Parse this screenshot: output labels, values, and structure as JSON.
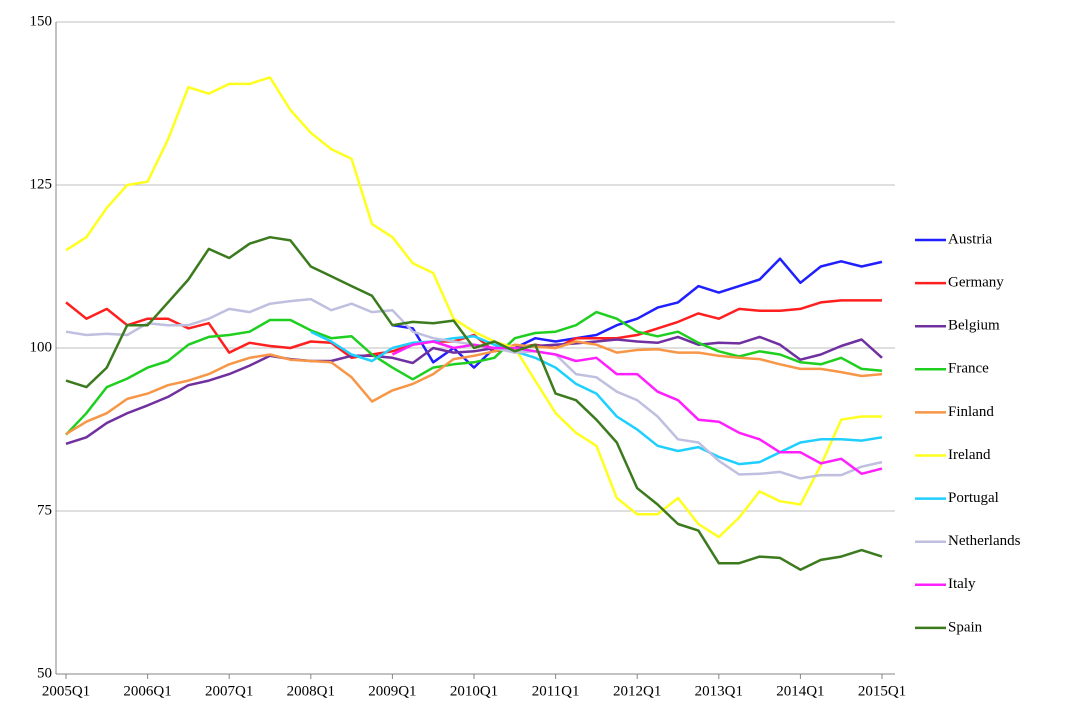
{
  "chart_data": {
    "type": "line",
    "categories": [
      "2005Q1",
      null,
      null,
      null,
      "2006Q1",
      null,
      null,
      null,
      "2007Q1",
      null,
      null,
      null,
      "2008Q1",
      null,
      null,
      null,
      "2009Q1",
      null,
      null,
      null,
      "2010Q1",
      null,
      null,
      null,
      "2011Q1",
      null,
      null,
      null,
      "2012Q1",
      null,
      null,
      null,
      "2013Q1",
      null,
      null,
      null,
      "2014Q1",
      null,
      null,
      null,
      "2015Q1"
    ],
    "ylim": [
      50,
      150
    ],
    "yticks": [
      50,
      75,
      100,
      125,
      150
    ],
    "grid": true,
    "series": [
      {
        "name": "Austria",
        "color": "#1f1fff",
        "values": [
          null,
          null,
          null,
          null,
          null,
          null,
          null,
          null,
          null,
          null,
          null,
          null,
          null,
          null,
          null,
          null,
          103.5,
          103,
          97.8,
          100,
          97,
          100,
          100,
          101.5,
          101,
          101.5,
          102,
          103.5,
          104.5,
          106.2,
          107,
          109.5,
          108.5,
          109.5,
          110.5,
          113.7,
          110,
          112.5,
          113.3,
          112.5,
          113.2
        ]
      },
      {
        "name": "Germany",
        "color": "#ff1f1f",
        "values": [
          107,
          104.5,
          106,
          103.5,
          104.5,
          104.5,
          103,
          103.8,
          99.3,
          100.8,
          100.3,
          100,
          101,
          100.8,
          98.5,
          99,
          99.5,
          100.5,
          101,
          101,
          102,
          99.5,
          100,
          100.5,
          100,
          101.5,
          101.5,
          101.5,
          102,
          103,
          104,
          105.3,
          104.5,
          106,
          105.7,
          105.7,
          106,
          107,
          107.3,
          107.3,
          107.3
        ]
      },
      {
        "name": "Belgium",
        "color": "#7030a0",
        "values": [
          85.3,
          86.3,
          88.5,
          90,
          91.2,
          92.5,
          94.3,
          95,
          96,
          97.3,
          98.8,
          98.3,
          98,
          98,
          98.8,
          98.8,
          98.5,
          97.7,
          100,
          99.3,
          99.5,
          100,
          100,
          100.3,
          100.5,
          100.7,
          101,
          101.3,
          101,
          100.8,
          101.7,
          100.5,
          100.8,
          100.7,
          101.7,
          100.5,
          98.2,
          99,
          100.3,
          101.3,
          98.5
        ]
      },
      {
        "name": "France",
        "color": "#1fcf1f",
        "values": [
          86.7,
          90,
          94,
          95.3,
          97,
          98,
          100.5,
          101.7,
          102,
          102.5,
          104.3,
          104.3,
          102.7,
          101.5,
          101.8,
          99,
          97,
          95.2,
          97,
          97.5,
          97.8,
          98.5,
          101.5,
          102.3,
          102.5,
          103.5,
          105.5,
          104.5,
          102.5,
          101.8,
          102.5,
          100.8,
          99.5,
          98.7,
          99.5,
          99,
          97.8,
          97.5,
          98.5,
          96.8,
          96.5
        ]
      },
      {
        "name": "Finland",
        "color": "#f79646",
        "values": [
          86.8,
          88.7,
          90,
          92.2,
          93,
          94.3,
          95,
          96,
          97.5,
          98.5,
          99,
          98.2,
          98,
          97.8,
          95.5,
          91.8,
          93.5,
          94.5,
          96,
          98.3,
          98.8,
          99.5,
          100.5,
          100.2,
          100,
          101,
          100.5,
          99.3,
          99.7,
          99.8,
          99.3,
          99.3,
          98.8,
          98.5,
          98.3,
          97.5,
          96.8,
          96.8,
          96.3,
          95.7,
          96
        ]
      },
      {
        "name": "Ireland",
        "color": "#ffff1f",
        "values": [
          115,
          117,
          121.5,
          125,
          125.5,
          132,
          140,
          139,
          140.5,
          140.5,
          141.5,
          136.5,
          133,
          130.5,
          129,
          119,
          117,
          113,
          111.5,
          104.5,
          102.5,
          101,
          100,
          95,
          90,
          87,
          85,
          77,
          74.5,
          74.5,
          77,
          73,
          71,
          74,
          78,
          76.5,
          76,
          82,
          89,
          89.5,
          89.5
        ]
      },
      {
        "name": "Portugal",
        "color": "#1fcfff",
        "values": [
          null,
          null,
          null,
          null,
          null,
          null,
          null,
          null,
          null,
          null,
          null,
          null,
          102.5,
          101,
          99,
          98,
          100,
          100.8,
          101,
          101.5,
          101.8,
          100.5,
          99.5,
          98.5,
          97,
          94.5,
          93,
          89.5,
          87.5,
          85,
          84.2,
          84.8,
          83.3,
          82.2,
          82.5,
          84,
          85.5,
          86,
          86,
          85.8,
          86.3
        ]
      },
      {
        "name": "Netherlands",
        "color": "#bfbfdf",
        "values": [
          102.5,
          102,
          102.2,
          102,
          103.8,
          103.5,
          103.5,
          104.5,
          106,
          105.5,
          106.8,
          107.2,
          107.5,
          105.8,
          106.8,
          105.5,
          105.8,
          102.5,
          101.5,
          101,
          100.5,
          100,
          99.3,
          99.5,
          99,
          96,
          95.5,
          93.3,
          92,
          89.5,
          86,
          85.5,
          82.7,
          80.6,
          80.7,
          81,
          80,
          80.5,
          80.5,
          81.8,
          82.5
        ]
      },
      {
        "name": "Italy",
        "color": "#ff1fff",
        "values": [
          null,
          null,
          null,
          null,
          null,
          null,
          null,
          null,
          null,
          null,
          null,
          null,
          null,
          null,
          null,
          null,
          99,
          100.5,
          101,
          100,
          100.5,
          100,
          100,
          99.5,
          99,
          98,
          98.5,
          96,
          96,
          93.3,
          92,
          89,
          88.7,
          87,
          86,
          84,
          84,
          82.3,
          83,
          80.7,
          81.5
        ]
      },
      {
        "name": "Spain",
        "color": "#3c7a1e",
        "values": [
          95,
          94,
          97,
          103.5,
          103.5,
          107,
          110.5,
          115.2,
          113.8,
          116,
          117,
          116.5,
          112.5,
          111,
          109.5,
          108,
          103.5,
          104,
          103.8,
          104.2,
          100,
          101,
          99.5,
          100.5,
          93,
          92,
          89,
          85.5,
          78.5,
          76,
          73,
          72,
          67,
          67,
          68,
          67.8,
          66,
          67.5,
          68,
          69,
          68
        ]
      }
    ]
  }
}
